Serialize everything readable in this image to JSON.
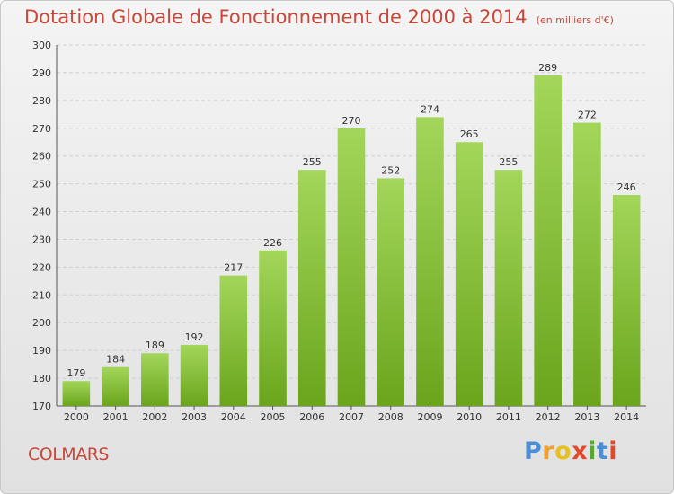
{
  "header": {
    "title": "Dotation Globale de Fonctionnement de 2000 à 2014",
    "unit": "(en milliers d'€)"
  },
  "footer": {
    "commune": "COLMARS",
    "logo_letters": [
      "P",
      "r",
      "o",
      "x",
      "i",
      "t",
      "i"
    ]
  },
  "colors": {
    "title": "#c8473a",
    "bar_light": "#a3d65a",
    "bar_dark": "#6aa51c",
    "grid": "#d0d0d0",
    "logo": [
      "#4a8fd6",
      "#f0a030",
      "#e8c020",
      "#e04a2a",
      "#5aa832",
      "#4a8fd6",
      "#e04a2a"
    ]
  },
  "chart_data": {
    "type": "bar",
    "title": "Dotation Globale de Fonctionnement de 2000 à 2014",
    "xlabel": "",
    "ylabel": "",
    "ylim": [
      170,
      300
    ],
    "yticks": [
      170,
      180,
      190,
      200,
      210,
      220,
      230,
      240,
      250,
      260,
      270,
      280,
      290,
      300
    ],
    "grid": true,
    "categories": [
      "2000",
      "2001",
      "2002",
      "2003",
      "2004",
      "2005",
      "2006",
      "2007",
      "2008",
      "2009",
      "2010",
      "2011",
      "2012",
      "2013",
      "2014"
    ],
    "values": [
      179,
      184,
      189,
      192,
      217,
      226,
      255,
      270,
      252,
      274,
      265,
      255,
      289,
      272,
      246
    ]
  }
}
